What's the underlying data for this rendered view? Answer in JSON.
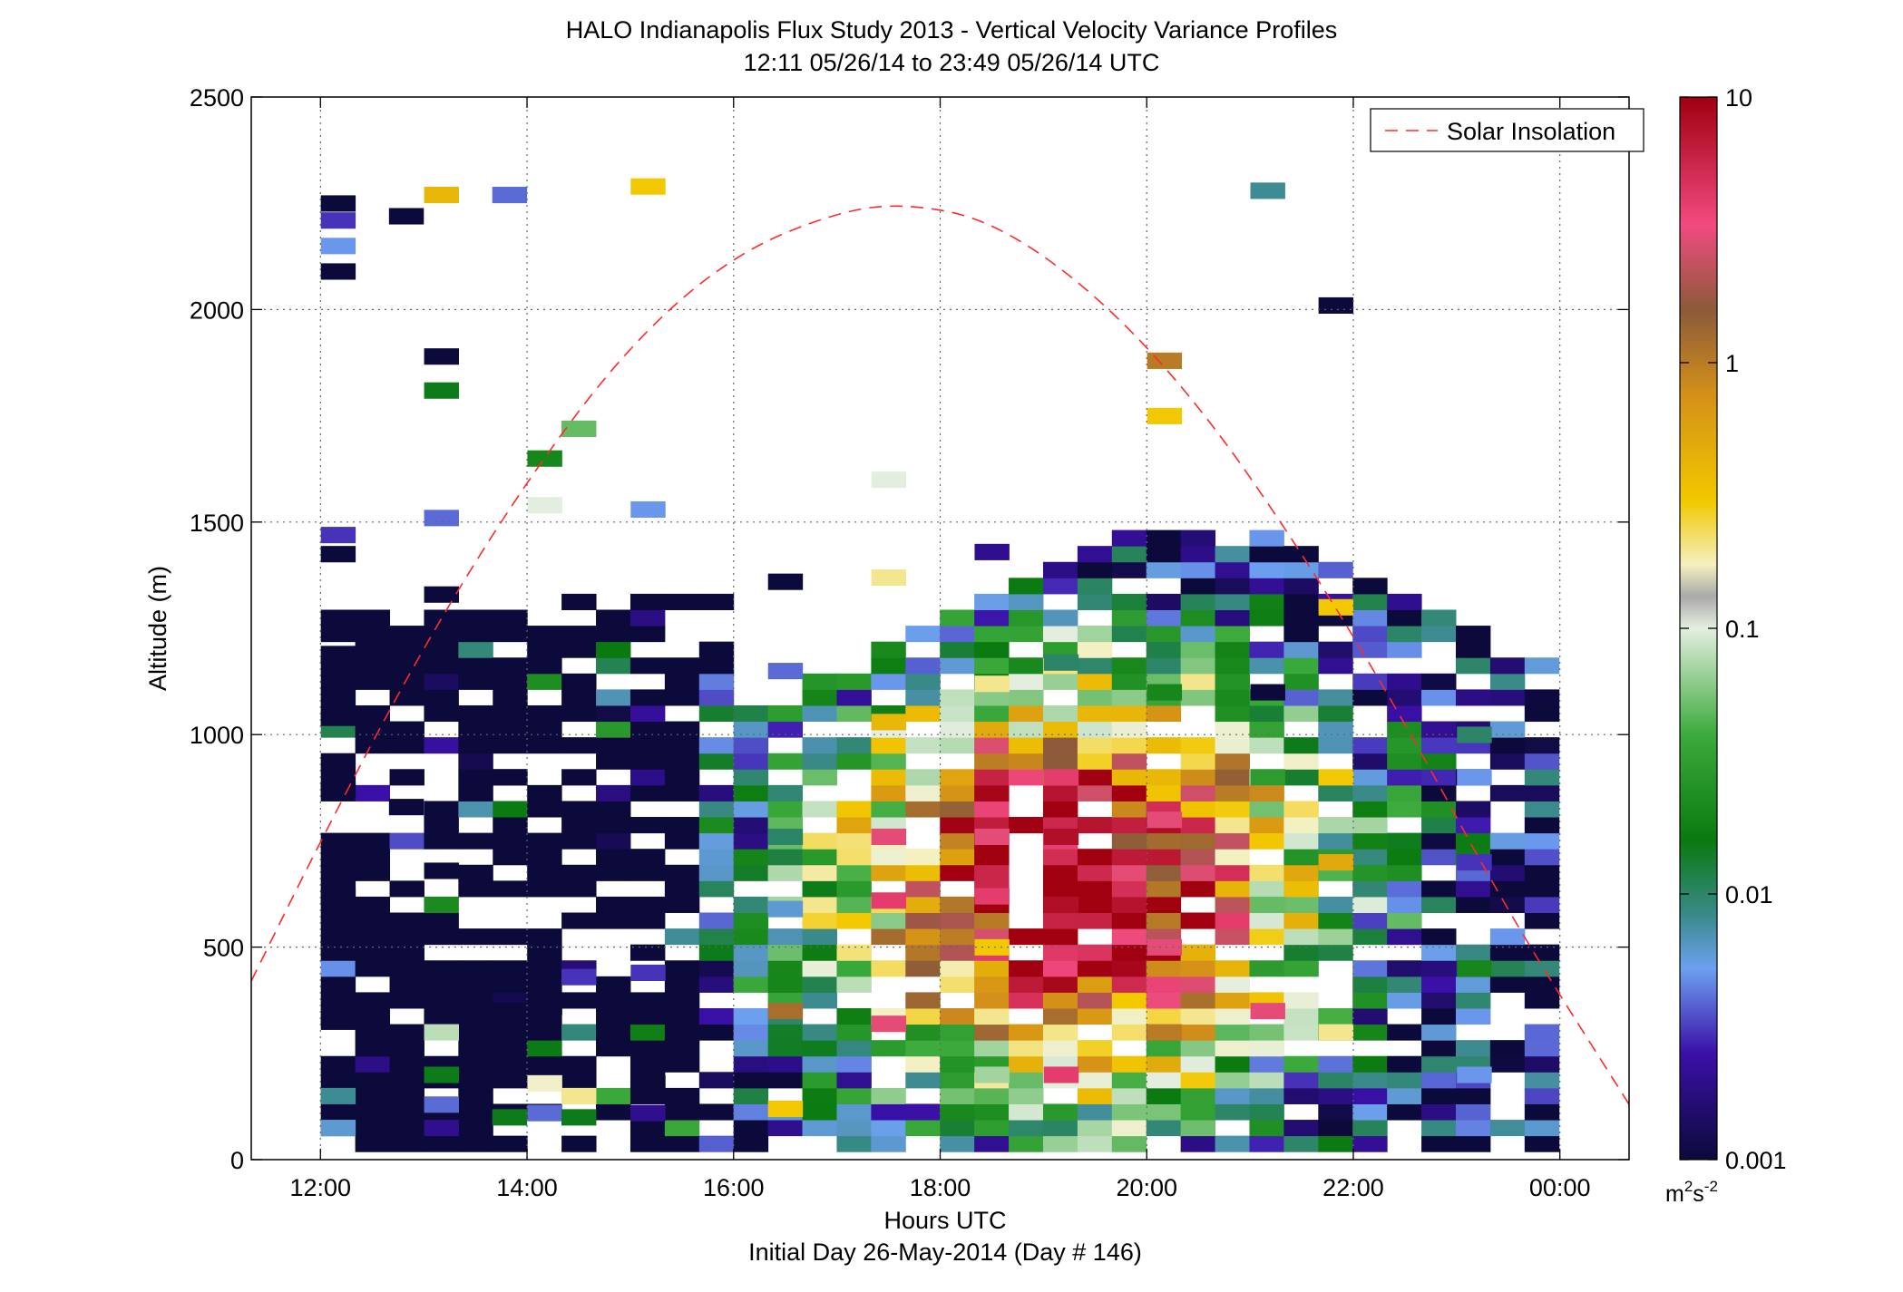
{
  "chart_data": {
    "type": "heatmap",
    "title": "HALO Indianapolis Flux Study 2013 - Vertical Velocity Variance Profiles",
    "subtitle": "12:11 05/26/14 to 23:49 05/26/14  UTC",
    "xlabel": "Hours UTC",
    "xlabel2": "Initial Day 26-May-2014 (Day # 146)",
    "ylabel": "Altitude (m)",
    "x_ticks": [
      "12:00",
      "14:00",
      "16:00",
      "18:00",
      "20:00",
      "22:00",
      "00:00"
    ],
    "y_ticks": [
      "0",
      "500",
      "1000",
      "1500",
      "2000",
      "2500"
    ],
    "x_range_hours": [
      11.33,
      24.67
    ],
    "ylim": [
      0,
      2500
    ],
    "grid": true,
    "legend": {
      "entries": [
        "Solar Insolation"
      ],
      "placement": "top-right"
    },
    "colorbar": {
      "scale": "log",
      "range": [
        0.001,
        10
      ],
      "tick_labels": [
        "10",
        "1",
        "0.1",
        "0.01",
        "0.001"
      ],
      "unit_label": "m",
      "unit_sup1": "2",
      "unit_mid": "s",
      "unit_sup2": "-2"
    },
    "solar_insolation": {
      "peak_hour": 17.67,
      "peak_altitude_m": 2250,
      "curve": [
        [
          11.33,
          420
        ],
        [
          12.0,
          750
        ],
        [
          13.0,
          1210
        ],
        [
          14.0,
          1600
        ],
        [
          15.0,
          1920
        ],
        [
          16.0,
          2130
        ],
        [
          17.0,
          2230
        ],
        [
          17.67,
          2250
        ],
        [
          18.5,
          2210
        ],
        [
          19.5,
          2040
        ],
        [
          20.5,
          1780
        ],
        [
          21.5,
          1430
        ],
        [
          22.5,
          1030
        ],
        [
          23.5,
          580
        ],
        [
          24.67,
          130
        ]
      ]
    },
    "time_bin_hours": 0.333,
    "altitude_bin_m": 37.5,
    "variance_profiles": [
      {
        "hour": 12.17,
        "values": [
          [
            0,
            75,
            0.006
          ],
          [
            0,
            150,
            0.008
          ],
          [
            0,
            1425,
            0.001
          ],
          [
            0,
            1470,
            0.003
          ],
          [
            0,
            1190,
            0.001
          ],
          [
            0,
            1040,
            0.001
          ],
          [
            0,
            870,
            0.001
          ],
          [
            0,
            620,
            0.001
          ],
          [
            0,
            500,
            0.001
          ],
          [
            0,
            325,
            0.001
          ],
          [
            0,
            2090,
            0.001
          ],
          [
            0,
            2150,
            0.005
          ],
          [
            0,
            2210,
            0.003
          ],
          [
            0,
            2250,
            0.001
          ]
        ]
      },
      {
        "hour": 12.83,
        "values": [
          [
            1,
            100,
            0.001
          ],
          [
            1,
            1150,
            0.001
          ],
          [
            1,
            830,
            0.001
          ],
          [
            1,
            520,
            0.001
          ],
          [
            1,
            2220,
            0.001
          ]
        ]
      },
      {
        "hour": 13.17,
        "values": [
          [
            2,
            75,
            0.002
          ],
          [
            2,
            130,
            0.004
          ],
          [
            2,
            200,
            0.015
          ],
          [
            2,
            300,
            0.08
          ],
          [
            2,
            680,
            0.001
          ],
          [
            2,
            1330,
            0.001
          ],
          [
            2,
            1510,
            0.004
          ],
          [
            2,
            1810,
            0.015
          ],
          [
            2,
            1890,
            0.001
          ],
          [
            2,
            2270,
            0.4
          ]
        ]
      },
      {
        "hour": 13.83,
        "values": [
          [
            3,
            100,
            0.015
          ],
          [
            3,
            190,
            0.001
          ],
          [
            3,
            350,
            0.001
          ],
          [
            3,
            900,
            0.001
          ],
          [
            3,
            2270,
            0.004
          ]
        ]
      },
      {
        "hour": 14.17,
        "values": [
          [
            4,
            110,
            0.004
          ],
          [
            4,
            180,
            0.15
          ],
          [
            4,
            360,
            0.001
          ],
          [
            4,
            1540,
            0.1
          ],
          [
            4,
            1650,
            0.02
          ]
        ]
      },
      {
        "hour": 14.5,
        "values": [
          [
            5,
            100,
            0.015
          ],
          [
            5,
            150,
            0.2
          ],
          [
            5,
            430,
            0.003
          ],
          [
            5,
            1720,
            0.05
          ]
        ]
      },
      {
        "hour": 15.17,
        "values": [
          [
            6,
            110,
            0.002
          ],
          [
            6,
            180,
            0.001
          ],
          [
            6,
            440,
            0.003
          ],
          [
            6,
            1530,
            0.005
          ],
          [
            6,
            2290,
            0.3
          ]
        ]
      },
      {
        "hour": 16.5,
        "values": [
          [
            7,
            120,
            0.3
          ],
          [
            7,
            350,
            1.2
          ],
          [
            7,
            590,
            0.006
          ],
          [
            7,
            760,
            0.01
          ],
          [
            7,
            1360,
            0.001
          ],
          [
            7,
            1150,
            0.004
          ]
        ]
      },
      {
        "hour": 17.5,
        "values": [
          [
            8,
            320,
            3
          ],
          [
            8,
            610,
            4
          ],
          [
            8,
            760,
            3
          ],
          [
            8,
            1030,
            0.4
          ],
          [
            8,
            1370,
            0.2
          ],
          [
            8,
            1600,
            0.1
          ]
        ]
      },
      {
        "hour": 18.5,
        "values": [
          [
            9,
            200,
            0.07
          ],
          [
            9,
            500,
            0.3
          ],
          [
            9,
            620,
            4
          ],
          [
            9,
            760,
            3
          ],
          [
            9,
            1120,
            0.2
          ],
          [
            9,
            1430,
            0.002
          ]
        ]
      },
      {
        "hour": 19.17,
        "values": [
          [
            10,
            200,
            4
          ],
          [
            10,
            600,
            8
          ],
          [
            10,
            760,
            8
          ],
          [
            10,
            900,
            4
          ],
          [
            10,
            1170,
            0.01
          ]
        ]
      },
      {
        "hour": 20.17,
        "values": [
          [
            11,
            300,
            1
          ],
          [
            11,
            500,
            3
          ],
          [
            11,
            800,
            3
          ],
          [
            11,
            1100,
            0.02
          ],
          [
            11,
            1750,
            0.3
          ],
          [
            11,
            1880,
            1
          ]
        ]
      },
      {
        "hour": 21.17,
        "values": [
          [
            12,
            350,
            3
          ],
          [
            12,
            600,
            0.05
          ],
          [
            12,
            900,
            0.03
          ],
          [
            12,
            1100,
            0.001
          ],
          [
            12,
            2280,
            0.008
          ]
        ]
      },
      {
        "hour": 21.83,
        "values": [
          [
            13,
            300,
            0.2
          ],
          [
            13,
            700,
            0.5
          ],
          [
            13,
            900,
            0.3
          ],
          [
            13,
            1300,
            0.3
          ],
          [
            13,
            2010,
            0.001
          ]
        ]
      },
      {
        "hour": 23.17,
        "values": [
          [
            14,
            200,
            0.005
          ],
          [
            14,
            450,
            0.02
          ],
          [
            14,
            700,
            0.003
          ],
          [
            14,
            900,
            0.005
          ],
          [
            14,
            1000,
            0.01
          ]
        ]
      }
    ]
  }
}
